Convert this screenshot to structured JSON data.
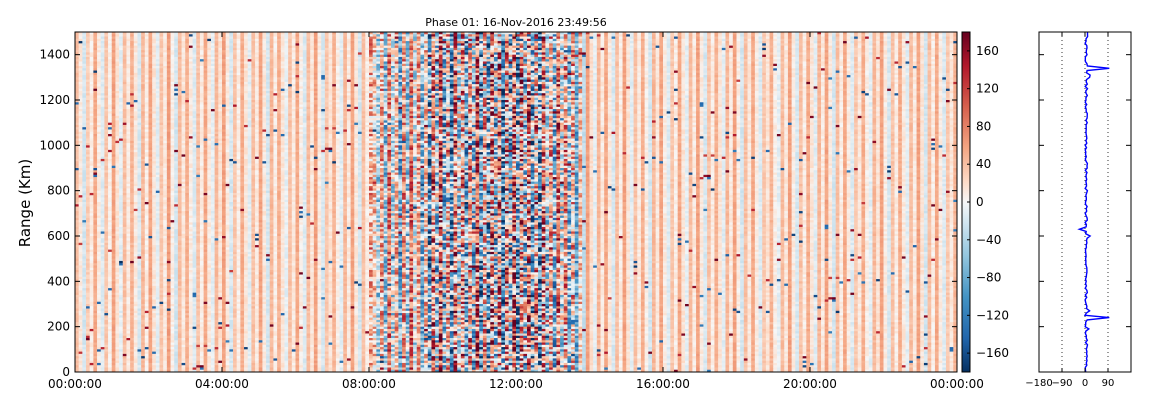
{
  "chart_data": [
    {
      "type": "heatmap",
      "title": "Phase 01: 16-Nov-2016 23:49:56",
      "xlabel": "",
      "ylabel": "Range (Km)",
      "x_ticks": [
        "00:00:00",
        "04:00:00",
        "08:00:00",
        "12:00:00",
        "16:00:00",
        "20:00:00",
        "00:00:00"
      ],
      "x_range_hours": [
        0,
        24
      ],
      "y_ticks": [
        0,
        200,
        400,
        600,
        800,
        1000,
        1200,
        1400
      ],
      "ylim": [
        0,
        1500
      ],
      "colormap": "RdBu_r",
      "colorbar": {
        "range": [
          -180,
          180
        ],
        "ticks": [
          160,
          120,
          80,
          40,
          0,
          -40,
          -80,
          -120,
          -160
        ]
      },
      "columns": 240,
      "rows": 150,
      "column_base_values": [
        40,
        12,
        -20,
        30,
        8,
        55,
        10,
        -15,
        35,
        5,
        60,
        15,
        -10,
        40,
        10,
        48,
        12,
        -18,
        45,
        8,
        58,
        15,
        -12,
        35,
        10,
        62,
        8,
        -20,
        42,
        12,
        50,
        10,
        -15,
        38,
        8,
        55,
        12,
        -10,
        45,
        15,
        60,
        10,
        -18,
        35,
        8,
        52,
        15,
        -12,
        40,
        10,
        58,
        12,
        -20,
        45,
        8,
        50,
        15,
        -10,
        38,
        10,
        55,
        8,
        -15,
        42,
        12,
        60,
        10,
        -18,
        35,
        15,
        48,
        8,
        -12,
        45,
        10,
        58,
        12,
        -20,
        40,
        8,
        55,
        30,
        -40,
        60,
        -60,
        80,
        -30,
        50,
        -80,
        70,
        -50,
        90,
        -20,
        60,
        -70,
        40,
        -90,
        80,
        -40,
        100,
        -60,
        50,
        -100,
        90,
        -30,
        70,
        -80,
        60,
        -50,
        110,
        -90,
        40,
        -70,
        90,
        -40,
        80,
        -110,
        60,
        -50,
        100,
        -80,
        70,
        -30,
        90,
        -60,
        50,
        -100,
        80,
        -40,
        60,
        -70,
        90,
        -20,
        70,
        -60,
        50,
        -80,
        40,
        -30,
        60,
        20,
        -10,
        45,
        10,
        55,
        12,
        -18,
        40,
        8,
        60,
        15,
        -12,
        38,
        10,
        50,
        8,
        -20,
        45,
        12,
        58,
        10,
        -15,
        35,
        8,
        55,
        15,
        -10,
        42,
        10,
        60,
        12,
        -18,
        38,
        8,
        50,
        15,
        -12,
        45,
        10,
        58,
        8,
        -20,
        40,
        12,
        55,
        10,
        -15,
        35,
        15,
        48,
        8,
        -10,
        42,
        12,
        60,
        10,
        -18,
        38,
        8,
        52,
        15,
        -12,
        45,
        10,
        58,
        12,
        -20,
        40,
        8,
        55,
        10,
        -15,
        35,
        12,
        50,
        8,
        -10,
        45,
        15,
        60,
        10,
        -18,
        38,
        8,
        52,
        12,
        -12,
        42,
        10,
        58,
        15,
        -20,
        40,
        8,
        55,
        10,
        -15,
        35,
        12,
        48
      ],
      "column_noise_amplitude": [
        8,
        8,
        8,
        8,
        8,
        8,
        8,
        8,
        8,
        8,
        8,
        8,
        8,
        8,
        8,
        8,
        8,
        8,
        8,
        8,
        8,
        8,
        8,
        8,
        8,
        8,
        8,
        8,
        8,
        8,
        8,
        8,
        8,
        8,
        8,
        8,
        8,
        8,
        8,
        8,
        8,
        8,
        8,
        8,
        8,
        8,
        8,
        8,
        8,
        8,
        8,
        8,
        8,
        8,
        8,
        8,
        8,
        8,
        8,
        8,
        8,
        8,
        8,
        8,
        8,
        8,
        8,
        8,
        8,
        8,
        8,
        8,
        8,
        8,
        8,
        8,
        8,
        8,
        8,
        8,
        70,
        70,
        70,
        70,
        70,
        70,
        70,
        70,
        70,
        70,
        70,
        70,
        70,
        70,
        70,
        70,
        110,
        110,
        110,
        110,
        110,
        110,
        110,
        110,
        110,
        110,
        110,
        110,
        110,
        110,
        110,
        110,
        130,
        130,
        130,
        130,
        130,
        130,
        130,
        130,
        130,
        130,
        130,
        130,
        130,
        130,
        130,
        130,
        90,
        90,
        90,
        90,
        90,
        90,
        90,
        90,
        60,
        60,
        8,
        8,
        8,
        8,
        8,
        8,
        8,
        8,
        8,
        8,
        8,
        8,
        8,
        8,
        8,
        8,
        8,
        8,
        8,
        8,
        8,
        8,
        8,
        8,
        8,
        8,
        8,
        8,
        8,
        8,
        8,
        8,
        8,
        8,
        8,
        8,
        8,
        8,
        8,
        8,
        8,
        8,
        8,
        8,
        8,
        8,
        8,
        8,
        8,
        8,
        8,
        8,
        8,
        8,
        8,
        8,
        8,
        8,
        8,
        8,
        8,
        8,
        8,
        8,
        8,
        8,
        8,
        8,
        8,
        8,
        8,
        8,
        8,
        8,
        8,
        8,
        8,
        8,
        8,
        8,
        8,
        8,
        8,
        8,
        8,
        8,
        8,
        8,
        8,
        8,
        8,
        8,
        8,
        8,
        8,
        8,
        8,
        8,
        8,
        8,
        8,
        8
      ],
      "outlier_rate": 0.015
    },
    {
      "type": "line",
      "x_ticks": [
        -180,
        -90,
        0,
        90
      ],
      "x_tick_labels": [
        "−180",
        "−90",
        "0",
        "90"
      ],
      "xlim": [
        -180,
        180
      ],
      "ylim": [
        0,
        1500
      ],
      "vertical_gridlines_at": [
        -90,
        0,
        90
      ],
      "line_color": "#0000ff",
      "range_step_km": 10,
      "profile_base_phase_deg": 5,
      "profile_noise_deg": 5,
      "spikes": [
        {
          "range_km": 1340,
          "value": 95
        },
        {
          "range_km": 1310,
          "value": 20
        },
        {
          "range_km": 1300,
          "value": 18
        },
        {
          "range_km": 630,
          "value": -22
        },
        {
          "range_km": 600,
          "value": 20
        },
        {
          "range_km": 240,
          "value": 95
        },
        {
          "range_km": 270,
          "value": 18
        },
        {
          "range_km": 190,
          "value": 15
        }
      ]
    }
  ]
}
